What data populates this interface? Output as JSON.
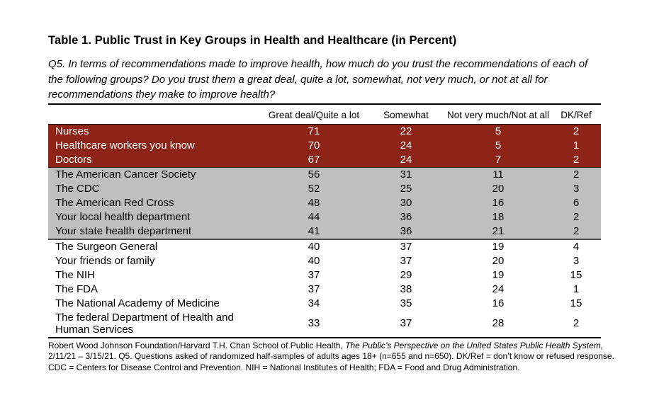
{
  "title": "Table 1. Public Trust in Key Groups in Health and Healthcare (in Percent)",
  "question_lines": [
    "Q5. In terms of recommendations made to improve health, how much do you trust the recommendations of each of",
    "the following groups? Do you trust them a great deal, quite a lot, somewhat, not very much, or not at all for",
    "recommendations they make to improve health?"
  ],
  "table": {
    "columns": [
      "",
      "Great deal/Quite a lot",
      "Somewhat",
      "Not very much/Not at all",
      "DK/Ref"
    ],
    "groups": [
      {
        "style": "red",
        "rows": [
          {
            "label": "Nurses",
            "values": [
              71,
              22,
              5,
              2
            ]
          },
          {
            "label": "Healthcare workers you know",
            "values": [
              70,
              24,
              5,
              1
            ]
          },
          {
            "label": "Doctors",
            "values": [
              67,
              24,
              7,
              2
            ]
          }
        ]
      },
      {
        "style": "gray",
        "rows": [
          {
            "label": "The American Cancer Society",
            "values": [
              56,
              31,
              11,
              2
            ]
          },
          {
            "label": "The CDC",
            "values": [
              52,
              25,
              20,
              3
            ]
          },
          {
            "label": "The American Red Cross",
            "values": [
              48,
              30,
              16,
              6
            ]
          },
          {
            "label": "Your local health department",
            "values": [
              44,
              36,
              18,
              2
            ]
          },
          {
            "label": "Your state health department",
            "values": [
              41,
              36,
              21,
              2
            ]
          }
        ]
      },
      {
        "style": "white",
        "rows": [
          {
            "label": "The Surgeon General",
            "values": [
              40,
              37,
              19,
              4
            ]
          },
          {
            "label": "Your friends or family",
            "values": [
              40,
              37,
              20,
              3
            ]
          },
          {
            "label": "The NIH",
            "values": [
              37,
              29,
              19,
              15
            ]
          },
          {
            "label": "The FDA",
            "values": [
              37,
              38,
              24,
              1
            ]
          },
          {
            "label": "The National Academy of Medicine",
            "values": [
              34,
              35,
              16,
              15
            ]
          },
          {
            "label": "The federal Department of Health and Human Services",
            "values": [
              33,
              37,
              28,
              2
            ]
          }
        ]
      }
    ]
  },
  "footnote_lines": [
    [
      {
        "text": "Robert Wood Johnson Foundation/Harvard T.H. Chan School of Public Health, ",
        "italic": false
      },
      {
        "text": "The Public’s Perspective on the United States Public Health System,",
        "italic": true
      }
    ],
    [
      {
        "text": "2/11/21 – 3/15/21. Q5. Questions asked of randomized half-samples of adults ages 18+ (n=655 and n=650). DK/Ref = don’t know or refused response.",
        "italic": false
      }
    ],
    [
      {
        "text": "CDC = Centers for Disease Control and Prevention. NIH = National Institutes of Health; FDA = Food and Drug Administration.",
        "italic": false
      }
    ]
  ],
  "colors": {
    "highlight_red": "#8E2418",
    "highlight_gray": "#BFBFBF",
    "red_row_text": "#FFFFFF"
  }
}
